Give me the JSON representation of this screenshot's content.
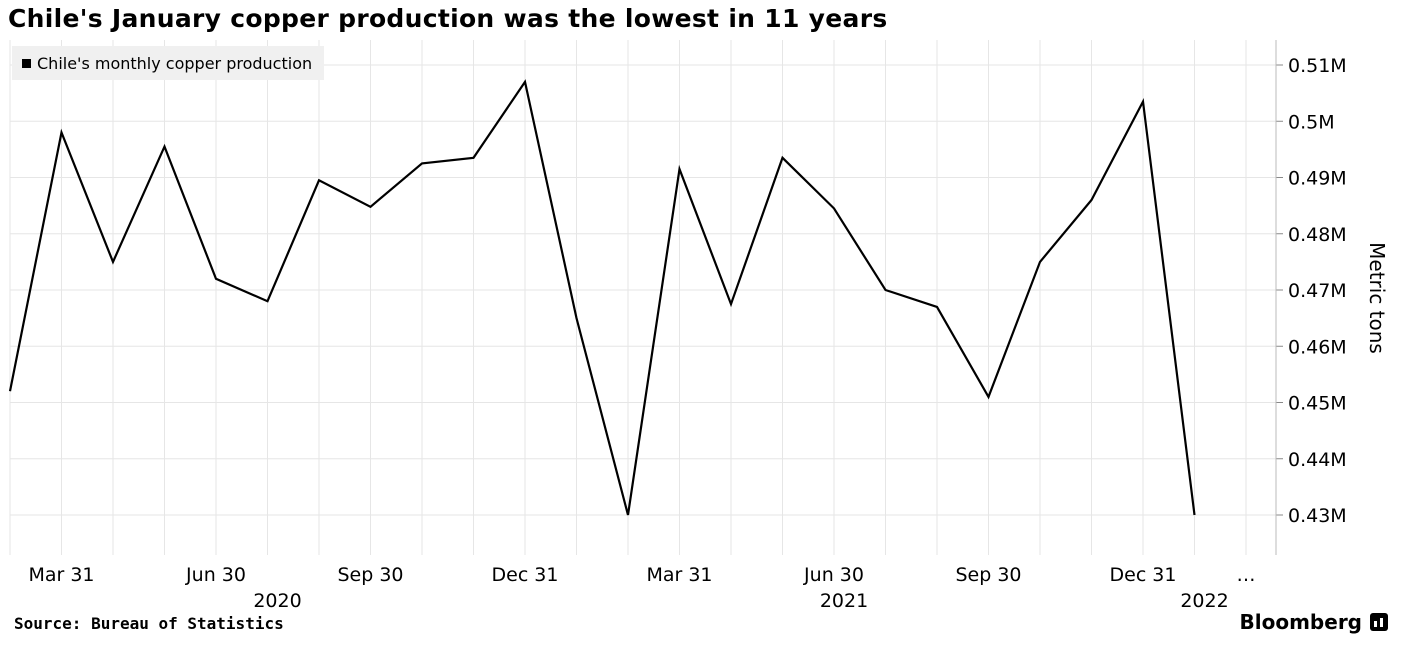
{
  "title": "Chile's January copper production was the lowest in 11 years",
  "source": "Source: Bureau of Statistics",
  "brand": "Bloomberg",
  "brand_icon": "bloomberg-terminal-icon",
  "chart_data": {
    "type": "line",
    "ylabel": "Metric tons",
    "ylim": [
      0.4225,
      0.5125
    ],
    "yticks": [
      0.43,
      0.44,
      0.45,
      0.46,
      0.47,
      0.48,
      0.49,
      0.5,
      0.51
    ],
    "ytick_labels": [
      "0.43M",
      "0.44M",
      "0.45M",
      "0.46M",
      "0.47M",
      "0.48M",
      "0.49M",
      "0.5M",
      "0.51M"
    ],
    "x_tick_labels": [
      "Mar 31",
      "Jun 30",
      "Sep 30",
      "Dec 31",
      "Mar 31",
      "Jun 30",
      "Sep 30",
      "Dec 31",
      "…"
    ],
    "x_tick_index": [
      1,
      4,
      7,
      10,
      13,
      16,
      19,
      22,
      24
    ],
    "year_labels": [
      "2020",
      "2021",
      "2022"
    ],
    "year_label_index": [
      5,
      16,
      23
    ],
    "grid": true,
    "legend_position": "top-left",
    "line_color": "#000000",
    "series": [
      {
        "name": "Chile's monthly copper production",
        "x": [
          "2020-02",
          "2020-03",
          "2020-04",
          "2020-05",
          "2020-06",
          "2020-07",
          "2020-08",
          "2020-09",
          "2020-10",
          "2020-11",
          "2020-12",
          "2021-01",
          "2021-02",
          "2021-03",
          "2021-04",
          "2021-05",
          "2021-06",
          "2021-07",
          "2021-08",
          "2021-09",
          "2021-10",
          "2021-11",
          "2021-12",
          "2022-01"
        ],
        "values": [
          0.452,
          0.498,
          0.475,
          0.4955,
          0.472,
          0.468,
          0.4895,
          0.4848,
          0.4925,
          0.4935,
          0.507,
          0.465,
          0.43,
          0.4915,
          0.4675,
          0.4935,
          0.4845,
          0.47,
          0.467,
          0.451,
          0.475,
          0.486,
          0.5035,
          0.43
        ]
      }
    ]
  }
}
